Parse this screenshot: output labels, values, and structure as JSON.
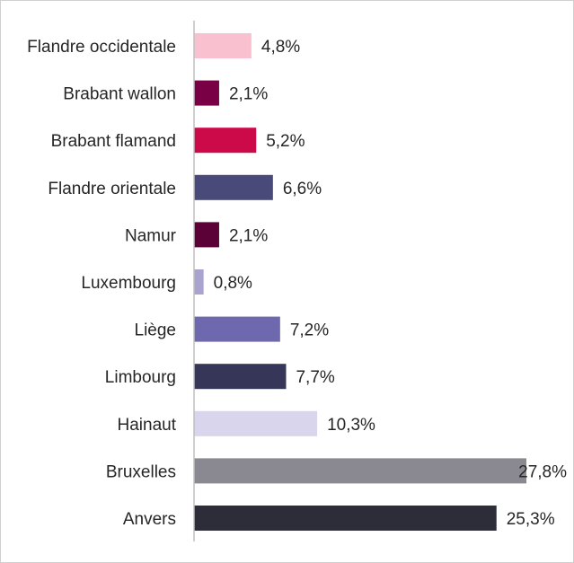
{
  "chart_data": {
    "type": "bar",
    "orientation": "horizontal",
    "categories": [
      "Flandre occidentale",
      "Brabant wallon",
      "Brabant flamand",
      "Flandre orientale",
      "Namur",
      "Luxembourg",
      "Liège",
      "Limbourg",
      "Hainaut",
      "Bruxelles",
      "Anvers"
    ],
    "values": [
      4.8,
      2.1,
      5.2,
      6.6,
      2.1,
      0.8,
      7.2,
      7.7,
      10.3,
      27.8,
      25.3
    ],
    "value_labels": [
      "4,8%",
      "2,1%",
      "5,2%",
      "6,6%",
      "2,1%",
      "0,8%",
      "7,2%",
      "7,7%",
      "10,3%",
      "27,8%",
      "25,3%"
    ],
    "colors": [
      "#f9c0d0",
      "#7a0045",
      "#cc0a4a",
      "#4a4a7a",
      "#5c0038",
      "#a8a3cf",
      "#6e68ae",
      "#363659",
      "#d8d5ec",
      "#8a8891",
      "#2d2d3a"
    ],
    "title": "",
    "xlabel": "",
    "ylabel": "",
    "xlim": [
      0,
      28
    ],
    "grid": false,
    "legend": "none"
  }
}
